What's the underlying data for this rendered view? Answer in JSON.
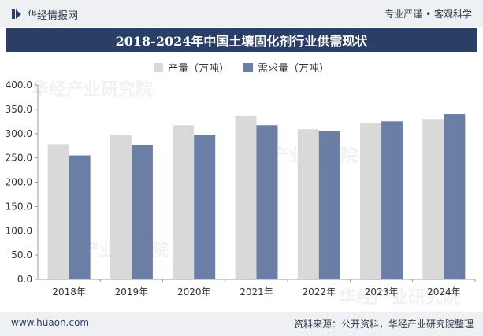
{
  "header": {
    "site_name": "华经情报网",
    "tagline": "专业严谨 • 客观科学"
  },
  "watermark_text": "华经产业研究院",
  "chart_data": {
    "type": "bar",
    "title": "2018-2024年中国土壤固化剂行业供需现状",
    "categories": [
      "2018年",
      "2019年",
      "2020年",
      "2021年",
      "2022年",
      "2023年",
      "2024年"
    ],
    "series": [
      {
        "name": "产量（万吨）",
        "color": "#d9d9d9",
        "values": [
          278,
          298,
          317,
          337,
          309,
          322,
          330
        ]
      },
      {
        "name": "需求量（万吨）",
        "color": "#6b7ea6",
        "values": [
          255,
          277,
          298,
          317,
          306,
          325,
          340
        ]
      }
    ],
    "ylim": [
      0,
      400
    ],
    "yticks": [
      "0.0",
      "50.0",
      "100.0",
      "150.0",
      "200.0",
      "250.0",
      "300.0",
      "350.0",
      "400.0"
    ],
    "xlabel": "",
    "ylabel": "",
    "grid": false,
    "legend": "top-center"
  },
  "footer": {
    "site_url": "www.huaon.com",
    "source": "资料来源：公开资料，华经产业研究院整理"
  }
}
